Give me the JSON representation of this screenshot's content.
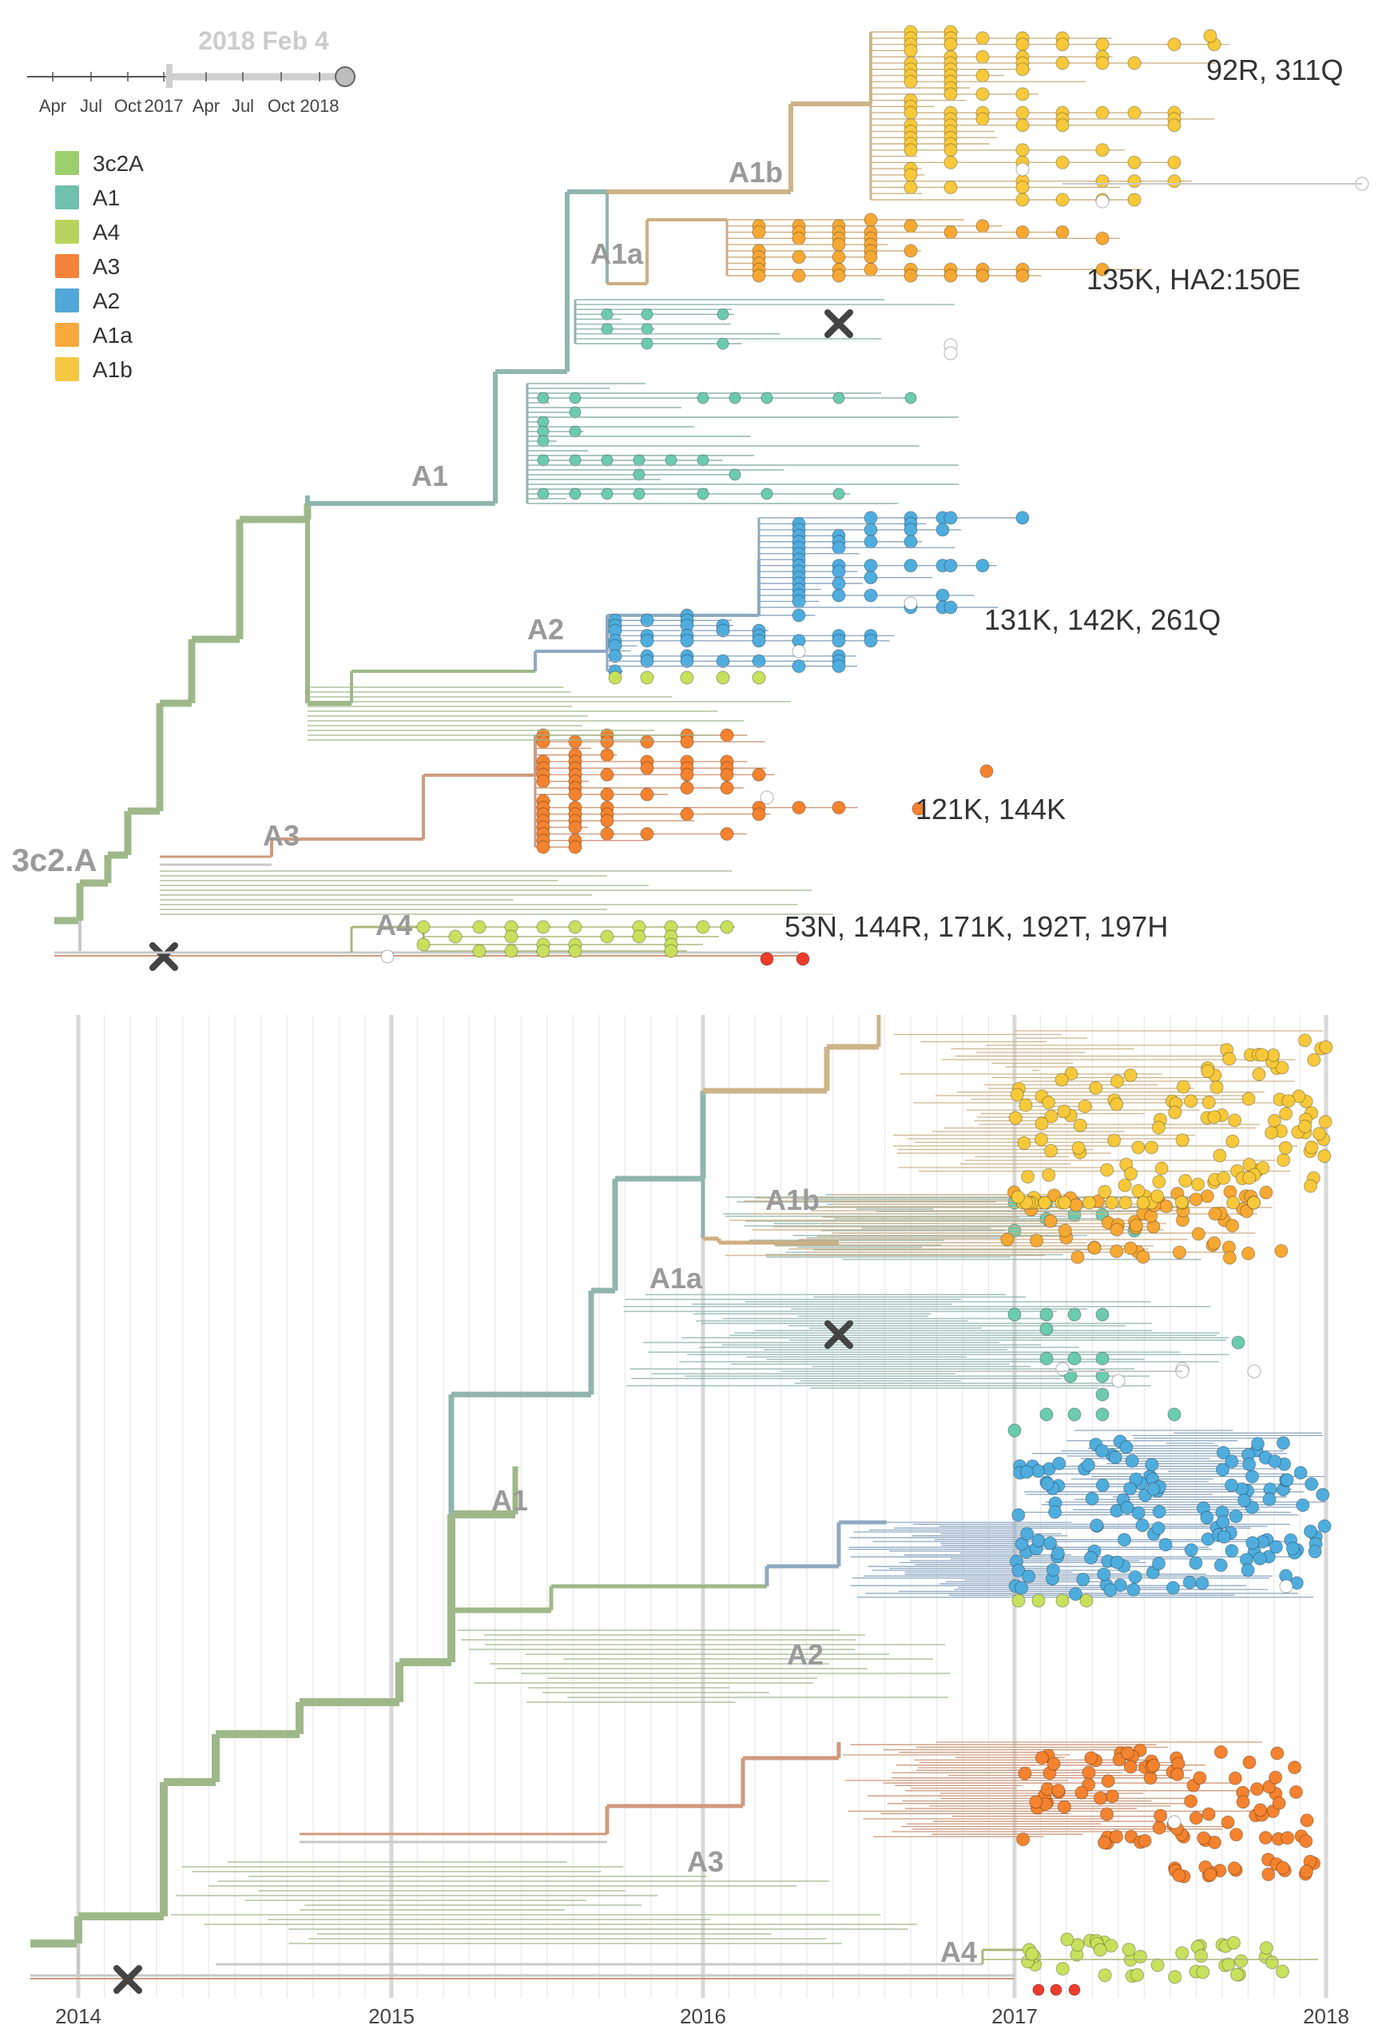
{
  "colors": {
    "3c2A": "#9fb88a",
    "A1": "#8fb5ae",
    "A4": "#a9b87a",
    "A3": "#cf9a7c",
    "A2": "#8fa9c2",
    "A1a": "#cfae82",
    "A1b": "#cdb489",
    "grey": "#c8c8c8",
    "tip_3c2A": "#8bcf5a",
    "tip_A1": "#6ccbae",
    "tip_A4": "#c9e05c",
    "tip_A3": "#f5822e",
    "tip_A2": "#4fadde",
    "tip_A1a": "#f7a833",
    "tip_A1b": "#f7c93a",
    "tip_red": "#ef3b2c",
    "marker": "#444444"
  },
  "slider": {
    "date_label": "2018 Feb 4",
    "ticks": [
      "Apr",
      "Jul",
      "Oct",
      "2017",
      "Apr",
      "Jul",
      "Oct",
      "2018"
    ]
  },
  "legend": [
    {
      "label": "3c2A",
      "color": "#9ccf6b"
    },
    {
      "label": "A1",
      "color": "#6fc0ad"
    },
    {
      "label": "A4",
      "color": "#b9d45c"
    },
    {
      "label": "A3",
      "color": "#f5823a"
    },
    {
      "label": "A2",
      "color": "#4fa8d8"
    },
    {
      "label": "A1a",
      "color": "#f7a93b"
    },
    {
      "label": "A1b",
      "color": "#f5c842"
    }
  ],
  "top_tree": {
    "clade_labels": [
      "A1b",
      "A1a",
      "A1",
      "A2",
      "A3",
      "3c2.A",
      "A4"
    ],
    "mutation_labels": [
      "92R, 311Q",
      "135K, HA2:150E",
      "131K, 142K, 261Q",
      "121K, 144K",
      "53N, 144R, 171K, 192T, 197H"
    ]
  },
  "bottom_tree": {
    "clade_labels": [
      "A1b",
      "A1a",
      "A1",
      "A2",
      "A3",
      "A4"
    ],
    "axis_years": [
      "2014",
      "2015",
      "2016",
      "2017",
      "2018"
    ]
  }
}
